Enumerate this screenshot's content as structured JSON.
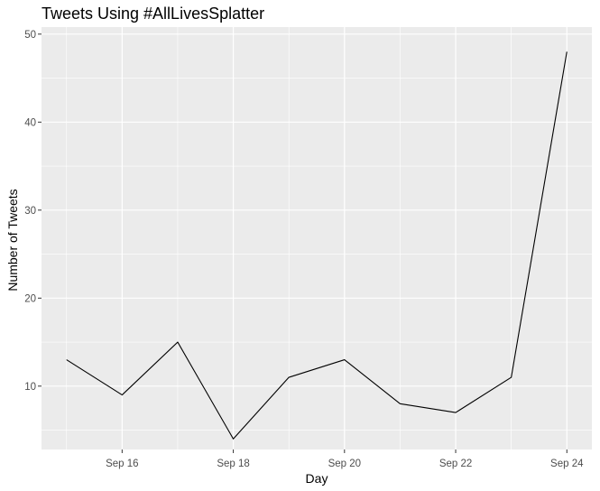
{
  "chart_data": {
    "type": "line",
    "title": "Tweets Using #AllLivesSplatter",
    "xlabel": "Day",
    "ylabel": "Number of Tweets",
    "x": [
      "Sep 15",
      "Sep 16",
      "Sep 17",
      "Sep 18",
      "Sep 19",
      "Sep 20",
      "Sep 21",
      "Sep 22",
      "Sep 23",
      "Sep 24"
    ],
    "series": [
      {
        "values": [
          13,
          9,
          15,
          4,
          11,
          13,
          8,
          7,
          11,
          48
        ]
      }
    ],
    "x_ticks": [
      "Sep 16",
      "Sep 18",
      "Sep 20",
      "Sep 22",
      "Sep 24"
    ],
    "y_ticks": [
      10,
      20,
      30,
      40,
      50
    ],
    "ylim": [
      2.8,
      50.8
    ],
    "xlim": [
      "Sep 14.55",
      "Sep 24.45"
    ],
    "grid": true,
    "line_color": "#000000",
    "panel_color": "#ebebeb",
    "grid_color": "#ffffff"
  }
}
